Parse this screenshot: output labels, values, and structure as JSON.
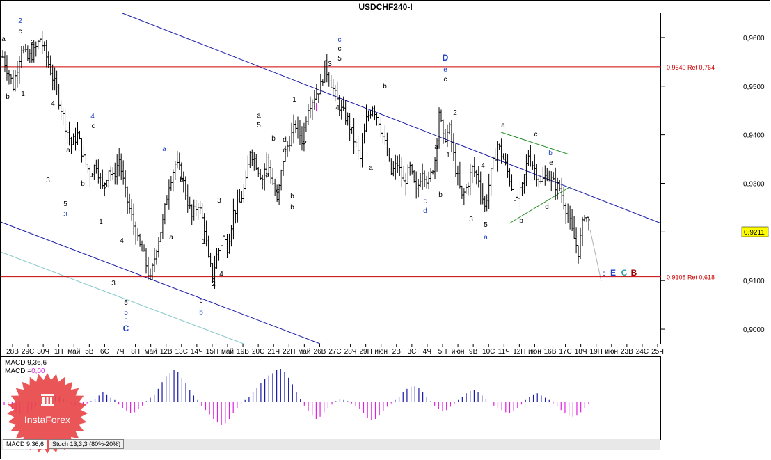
{
  "chart_data": {
    "type": "bar",
    "title": "USDCHF240-I",
    "symbol": "USDCHF",
    "timeframe": "H4",
    "ylim": [
      0.897,
      0.965
    ],
    "y_ticks": [
      "0,9600",
      "0,9500",
      "0,9400",
      "0,9300",
      "0,9200",
      "0,9100",
      "0,9000"
    ],
    "y_tick_values": [
      0.96,
      0.95,
      0.94,
      0.93,
      0.92,
      0.91,
      0.9
    ],
    "x_ticks": [
      "28В",
      "29С",
      "30Ч",
      "1П",
      "май",
      "5В",
      "6С",
      "7Ч",
      "8П",
      "май",
      "12В",
      "13С",
      "14Ч",
      "15П",
      "май",
      "19В",
      "20С",
      "21Ч",
      "22П",
      "май",
      "26В",
      "27С",
      "28Ч",
      "29П",
      "июн",
      "2В",
      "3С",
      "4Ч",
      "5П",
      "июн",
      "9В",
      "10С",
      "11Ч",
      "12П",
      "июн",
      "16В",
      "17С",
      "18Ч",
      "19П",
      "июн",
      "23В",
      "24С",
      "25Ч"
    ],
    "current_price": "0,9211",
    "current_price_value": 0.9211,
    "levels": [
      {
        "value": 0.954,
        "label": "0,9540 Ret 0,764",
        "color": "#cc0000"
      },
      {
        "value": 0.9108,
        "label": "0,9108 Ret 0,618",
        "color": "#cc0000"
      }
    ],
    "waypoints": [
      [
        0,
        0.956
      ],
      [
        3,
        0.9525
      ],
      [
        5,
        0.95
      ],
      [
        9,
        0.958
      ],
      [
        12,
        0.9555
      ],
      [
        15,
        0.957
      ],
      [
        18,
        0.9598
      ],
      [
        21,
        0.956
      ],
      [
        26,
        0.949
      ],
      [
        30,
        0.942
      ],
      [
        33,
        0.938
      ],
      [
        36,
        0.94
      ],
      [
        39,
        0.935
      ],
      [
        42,
        0.932
      ],
      [
        45,
        0.934
      ],
      [
        48,
        0.929
      ],
      [
        51,
        0.933
      ],
      [
        53,
        0.931
      ],
      [
        56,
        0.935
      ],
      [
        59,
        0.928
      ],
      [
        62,
        0.923
      ],
      [
        65,
        0.918
      ],
      [
        68,
        0.915
      ],
      [
        71,
        0.91
      ],
      [
        74,
        0.917
      ],
      [
        77,
        0.922
      ],
      [
        80,
        0.93
      ],
      [
        83,
        0.934
      ],
      [
        86,
        0.932
      ],
      [
        88,
        0.928
      ],
      [
        91,
        0.923
      ],
      [
        94,
        0.926
      ],
      [
        97,
        0.921
      ],
      [
        99,
        0.914
      ],
      [
        101,
        0.911
      ],
      [
        103,
        0.915
      ],
      [
        106,
        0.919
      ],
      [
        108,
        0.917
      ],
      [
        111,
        0.924
      ],
      [
        114,
        0.926
      ],
      [
        117,
        0.93
      ],
      [
        119,
        0.937
      ],
      [
        122,
        0.934
      ],
      [
        125,
        0.931
      ],
      [
        127,
        0.935
      ],
      [
        130,
        0.93
      ],
      [
        132,
        0.926
      ],
      [
        135,
        0.935
      ],
      [
        138,
        0.939
      ],
      [
        141,
        0.942
      ],
      [
        144,
        0.939
      ],
      [
        147,
        0.946
      ],
      [
        150,
        0.948
      ],
      [
        153,
        0.95
      ],
      [
        155,
        0.954
      ],
      [
        157,
        0.952
      ],
      [
        160,
        0.948
      ],
      [
        163,
        0.945
      ],
      [
        166,
        0.943
      ],
      [
        169,
        0.939
      ],
      [
        172,
        0.935
      ],
      [
        175,
        0.943
      ],
      [
        178,
        0.946
      ],
      [
        181,
        0.943
      ],
      [
        184,
        0.938
      ],
      [
        187,
        0.932
      ],
      [
        190,
        0.934
      ],
      [
        193,
        0.93
      ],
      [
        196,
        0.933
      ],
      [
        199,
        0.928
      ],
      [
        202,
        0.933
      ],
      [
        205,
        0.93
      ],
      [
        208,
        0.935
      ],
      [
        210,
        0.945
      ],
      [
        212,
        0.939
      ],
      [
        215,
        0.941
      ],
      [
        218,
        0.933
      ],
      [
        221,
        0.927
      ],
      [
        223,
        0.929
      ],
      [
        226,
        0.933
      ],
      [
        229,
        0.931
      ],
      [
        232,
        0.925
      ],
      [
        235,
        0.932
      ],
      [
        238,
        0.938
      ],
      [
        241,
        0.935
      ],
      [
        244,
        0.931
      ],
      [
        247,
        0.926
      ],
      [
        250,
        0.929
      ],
      [
        253,
        0.936
      ],
      [
        256,
        0.933
      ],
      [
        259,
        0.93
      ],
      [
        262,
        0.932
      ],
      [
        265,
        0.93
      ],
      [
        268,
        0.929
      ],
      [
        271,
        0.925
      ],
      [
        274,
        0.92
      ],
      [
        277,
        0.916
      ],
      [
        280,
        0.924
      ],
      [
        282,
        0.922
      ]
    ],
    "wave_labels": [
      {
        "text": "2",
        "x": 29,
        "y": 33,
        "color": "#1a3fc4"
      },
      {
        "text": "c",
        "x": 29,
        "y": 48,
        "color": "#000000"
      },
      {
        "text": "a",
        "x": 5,
        "y": 59,
        "color": "#000000"
      },
      {
        "text": "2",
        "x": 47,
        "y": 64,
        "color": "#000000"
      },
      {
        "text": "b",
        "x": 11,
        "y": 142,
        "color": "#000000"
      },
      {
        "text": "1",
        "x": 33,
        "y": 138,
        "color": "#000000"
      },
      {
        "text": "4",
        "x": 76,
        "y": 152,
        "color": "#000000"
      },
      {
        "text": "a",
        "x": 98,
        "y": 219,
        "color": "#000000"
      },
      {
        "text": "3",
        "x": 69,
        "y": 262,
        "color": "#000000"
      },
      {
        "text": "b",
        "x": 119,
        "y": 267,
        "color": "#000000"
      },
      {
        "text": "5",
        "x": 94,
        "y": 296,
        "color": "#000000"
      },
      {
        "text": "3",
        "x": 94,
        "y": 311,
        "color": "#1a3fc4"
      },
      {
        "text": "4",
        "x": 133,
        "y": 170,
        "color": "#1a3fc4"
      },
      {
        "text": "c",
        "x": 134,
        "y": 184,
        "color": "#000000"
      },
      {
        "text": "2",
        "x": 152,
        "y": 272,
        "color": "#000000"
      },
      {
        "text": "1",
        "x": 145,
        "y": 322,
        "color": "#000000"
      },
      {
        "text": "4",
        "x": 175,
        "y": 349,
        "color": "#000000"
      },
      {
        "text": "3",
        "x": 163,
        "y": 410,
        "color": "#000000"
      },
      {
        "text": "5",
        "x": 181,
        "y": 438,
        "color": "#000000"
      },
      {
        "text": "5",
        "x": 181,
        "y": 452,
        "color": "#1a3fc4"
      },
      {
        "text": "c",
        "x": 181,
        "y": 463,
        "color": "#1a3fc4"
      },
      {
        "text": "C",
        "x": 181,
        "y": 476,
        "color": "#1a3fc4"
      },
      {
        "text": "a",
        "x": 236,
        "y": 217,
        "color": "#1a3fc4"
      },
      {
        "text": "b",
        "x": 261,
        "y": 261,
        "color": "#000000"
      },
      {
        "text": "a",
        "x": 246,
        "y": 344,
        "color": "#000000"
      },
      {
        "text": "1",
        "x": 293,
        "y": 350,
        "color": "#000000"
      },
      {
        "text": "3",
        "x": 315,
        "y": 291,
        "color": "#000000"
      },
      {
        "text": "4",
        "x": 318,
        "y": 397,
        "color": "#000000"
      },
      {
        "text": "2",
        "x": 307,
        "y": 411,
        "color": "#000000"
      },
      {
        "text": "c",
        "x": 289,
        "y": 435,
        "color": "#000000"
      },
      {
        "text": "b",
        "x": 289,
        "y": 452,
        "color": "#1a3fc4"
      },
      {
        "text": "a",
        "x": 372,
        "y": 169,
        "color": "#000000"
      },
      {
        "text": "5",
        "x": 372,
        "y": 183,
        "color": "#000000"
      },
      {
        "text": "1",
        "x": 423,
        "y": 146,
        "color": "#000000"
      },
      {
        "text": "b",
        "x": 393,
        "y": 202,
        "color": "#000000"
      },
      {
        "text": "d",
        "x": 409,
        "y": 204,
        "color": "#000000"
      },
      {
        "text": "e",
        "x": 409,
        "y": 219,
        "color": "#000000"
      },
      {
        "text": "2",
        "x": 438,
        "y": 209,
        "color": "#000000"
      },
      {
        "text": "a",
        "x": 384,
        "y": 254,
        "color": "#000000"
      },
      {
        "text": "c",
        "x": 399,
        "y": 277,
        "color": "#000000"
      },
      {
        "text": "b",
        "x": 420,
        "y": 285,
        "color": "#000000"
      },
      {
        "text": "b",
        "x": 420,
        "y": 301,
        "color": "#000000"
      },
      {
        "text": "c",
        "x": 488,
        "y": 60,
        "color": "#1a3fc4"
      },
      {
        "text": "c",
        "x": 488,
        "y": 73,
        "color": "#000000"
      },
      {
        "text": "5",
        "x": 488,
        "y": 87,
        "color": "#000000"
      },
      {
        "text": "3",
        "x": 474,
        "y": 95,
        "color": "#000000"
      },
      {
        "text": "4",
        "x": 485,
        "y": 158,
        "color": "#000000"
      },
      {
        "text": "b",
        "x": 553,
        "y": 127,
        "color": "#000000"
      },
      {
        "text": "a",
        "x": 533,
        "y": 244,
        "color": "#000000"
      },
      {
        "text": "D",
        "x": 640,
        "y": 87,
        "color": "#1a3fc4"
      },
      {
        "text": "e",
        "x": 640,
        "y": 103,
        "color": "#1a3fc4"
      },
      {
        "text": "c",
        "x": 640,
        "y": 117,
        "color": "#000000"
      },
      {
        "text": "2",
        "x": 654,
        "y": 165,
        "color": "#000000"
      },
      {
        "text": "a",
        "x": 627,
        "y": 214,
        "color": "#000000"
      },
      {
        "text": "1",
        "x": 644,
        "y": 226,
        "color": "#000000"
      },
      {
        "text": "4",
        "x": 694,
        "y": 241,
        "color": "#000000"
      },
      {
        "text": "b",
        "x": 633,
        "y": 283,
        "color": "#000000"
      },
      {
        "text": "c",
        "x": 611,
        "y": 292,
        "color": "#1a3fc4"
      },
      {
        "text": "d",
        "x": 611,
        "y": 306,
        "color": "#1a3fc4"
      },
      {
        "text": "3",
        "x": 677,
        "y": 318,
        "color": "#000000"
      },
      {
        "text": "5",
        "x": 698,
        "y": 326,
        "color": "#000000"
      },
      {
        "text": "a",
        "x": 698,
        "y": 344,
        "color": "#1a3fc4"
      },
      {
        "text": "a",
        "x": 723,
        "y": 183,
        "color": "#000000"
      },
      {
        "text": "c",
        "x": 770,
        "y": 196,
        "color": "#000000"
      },
      {
        "text": "b",
        "x": 791,
        "y": 223,
        "color": "#1a3fc4"
      },
      {
        "text": "e",
        "x": 792,
        "y": 237,
        "color": "#000000"
      },
      {
        "text": "b",
        "x": 749,
        "y": 320,
        "color": "#000000"
      },
      {
        "text": "d",
        "x": 786,
        "y": 300,
        "color": "#000000"
      },
      {
        "text": "c",
        "x": 868,
        "y": 396,
        "color": "#1a3fc4"
      },
      {
        "text": "E",
        "x": 881,
        "y": 396,
        "color": "#1a3fc4"
      },
      {
        "text": "C",
        "x": 897,
        "y": 396,
        "color": "#2aa0a0"
      },
      {
        "text": "B",
        "x": 911,
        "y": 396,
        "color": "#a00000"
      }
    ],
    "macd": {
      "label_line1": "MACD 9,36,6",
      "label_line2_prefix": "MACD =",
      "label_line2_value": "0,00",
      "histogram": [
        -5,
        -8,
        -12,
        -18,
        -22,
        -24,
        -20,
        -14,
        -8,
        -2,
        4,
        8,
        10,
        12,
        10,
        6,
        2,
        -2,
        -6,
        -8,
        -6,
        -2,
        2,
        6,
        12,
        18,
        14,
        8,
        4,
        -4,
        -10,
        -16,
        -20,
        -18,
        -12,
        -6,
        2,
        8,
        14,
        24,
        36,
        46,
        52,
        58,
        54,
        44,
        34,
        22,
        12,
        4,
        -6,
        -14,
        -22,
        -30,
        -36,
        -40,
        -38,
        -30,
        -20,
        -10,
        -2,
        4,
        10,
        18,
        26,
        34,
        42,
        48,
        52,
        58,
        60,
        54,
        44,
        32,
        18,
        6,
        -6,
        -16,
        -24,
        -30,
        -26,
        -18,
        -10,
        -4,
        2,
        6,
        4,
        2,
        -2,
        -6,
        -12,
        -20,
        -28,
        -32,
        -30,
        -24,
        -16,
        -8,
        -2,
        4,
        10,
        18,
        24,
        28,
        30,
        26,
        18,
        10,
        2,
        -6,
        -12,
        -16,
        -14,
        -8,
        -2,
        4,
        10,
        16,
        20,
        22,
        18,
        12,
        6,
        0,
        -6,
        -10,
        -14,
        -18,
        -20,
        -16,
        -10,
        -4,
        4,
        10,
        14,
        16,
        12,
        8,
        4,
        -2,
        -8,
        -14,
        -20,
        -24,
        -26,
        -24,
        -18,
        -10,
        -4
      ]
    },
    "tabs": [
      "MACD 9,36,6",
      "Stoch 13,3,3 (80%-20%)"
    ],
    "watermark": "InstaForex"
  }
}
